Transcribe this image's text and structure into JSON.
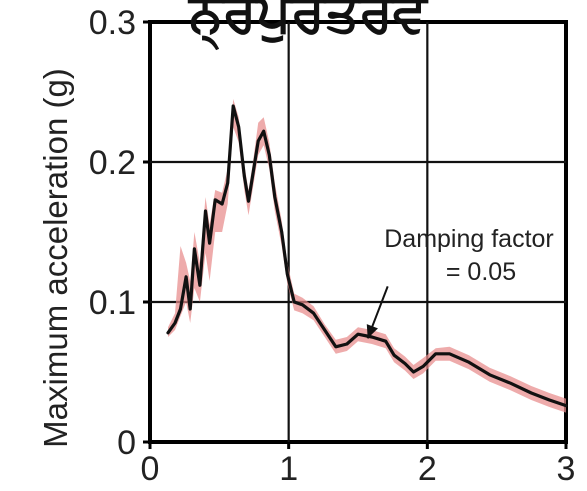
{
  "chart_data": {
    "type": "line",
    "title": "ਨ੍ਰਪੁਰਤਰਵ",
    "ylabel": "Maximum acceleration (g)",
    "xlabel": "",
    "xlim": [
      0,
      3
    ],
    "ylim": [
      0,
      0.3
    ],
    "x_ticks": [
      "0",
      "1",
      "2",
      "3"
    ],
    "y_ticks": [
      "0",
      "0.1",
      "0.2",
      "0.3"
    ],
    "grid": true,
    "annotation": {
      "line1": "Damping factor",
      "line2": "= 0.05",
      "point": [
        1.57,
        0.074
      ]
    },
    "series": [
      {
        "name": "",
        "color": "#111111",
        "values": [
          [
            0.13,
            0.078
          ],
          [
            0.18,
            0.085
          ],
          [
            0.22,
            0.095
          ],
          [
            0.26,
            0.118
          ],
          [
            0.29,
            0.095
          ],
          [
            0.32,
            0.138
          ],
          [
            0.36,
            0.112
          ],
          [
            0.4,
            0.165
          ],
          [
            0.43,
            0.142
          ],
          [
            0.47,
            0.173
          ],
          [
            0.52,
            0.17
          ],
          [
            0.56,
            0.185
          ],
          [
            0.6,
            0.24
          ],
          [
            0.64,
            0.225
          ],
          [
            0.68,
            0.19
          ],
          [
            0.71,
            0.172
          ],
          [
            0.74,
            0.19
          ],
          [
            0.78,
            0.215
          ],
          [
            0.82,
            0.222
          ],
          [
            0.86,
            0.205
          ],
          [
            0.9,
            0.175
          ],
          [
            0.95,
            0.15
          ],
          [
            0.99,
            0.12
          ],
          [
            1.04,
            0.1
          ],
          [
            1.1,
            0.098
          ],
          [
            1.18,
            0.092
          ],
          [
            1.26,
            0.08
          ],
          [
            1.34,
            0.068
          ],
          [
            1.42,
            0.07
          ],
          [
            1.5,
            0.077
          ],
          [
            1.6,
            0.075
          ],
          [
            1.7,
            0.072
          ],
          [
            1.76,
            0.062
          ],
          [
            1.84,
            0.056
          ],
          [
            1.9,
            0.05
          ],
          [
            1.97,
            0.054
          ],
          [
            2.06,
            0.063
          ],
          [
            2.16,
            0.063
          ],
          [
            2.3,
            0.057
          ],
          [
            2.45,
            0.048
          ],
          [
            2.6,
            0.042
          ],
          [
            2.75,
            0.035
          ],
          [
            2.88,
            0.03
          ],
          [
            3.0,
            0.026
          ]
        ]
      }
    ],
    "band": {
      "name": "",
      "color": "#e88a8a",
      "upper": [
        [
          0.13,
          0.082
        ],
        [
          0.18,
          0.092
        ],
        [
          0.22,
          0.14
        ],
        [
          0.26,
          0.128
        ],
        [
          0.29,
          0.115
        ],
        [
          0.32,
          0.15
        ],
        [
          0.36,
          0.128
        ],
        [
          0.4,
          0.175
        ],
        [
          0.43,
          0.155
        ],
        [
          0.47,
          0.18
        ],
        [
          0.52,
          0.178
        ],
        [
          0.56,
          0.195
        ],
        [
          0.6,
          0.245
        ],
        [
          0.64,
          0.232
        ],
        [
          0.68,
          0.198
        ],
        [
          0.71,
          0.18
        ],
        [
          0.74,
          0.198
        ],
        [
          0.78,
          0.228
        ],
        [
          0.82,
          0.232
        ],
        [
          0.86,
          0.214
        ],
        [
          0.9,
          0.185
        ],
        [
          0.95,
          0.158
        ],
        [
          0.99,
          0.128
        ],
        [
          1.04,
          0.106
        ],
        [
          1.1,
          0.103
        ],
        [
          1.18,
          0.097
        ],
        [
          1.26,
          0.084
        ],
        [
          1.34,
          0.073
        ],
        [
          1.42,
          0.075
        ],
        [
          1.5,
          0.082
        ],
        [
          1.6,
          0.08
        ],
        [
          1.7,
          0.077
        ],
        [
          1.76,
          0.067
        ],
        [
          1.84,
          0.061
        ],
        [
          1.9,
          0.055
        ],
        [
          1.97,
          0.06
        ],
        [
          2.06,
          0.067
        ],
        [
          2.16,
          0.068
        ],
        [
          2.3,
          0.062
        ],
        [
          2.45,
          0.053
        ],
        [
          2.6,
          0.047
        ],
        [
          2.75,
          0.04
        ],
        [
          2.88,
          0.035
        ],
        [
          3.0,
          0.031
        ]
      ],
      "lower": [
        [
          0.13,
          0.075
        ],
        [
          0.18,
          0.08
        ],
        [
          0.22,
          0.09
        ],
        [
          0.26,
          0.1
        ],
        [
          0.29,
          0.085
        ],
        [
          0.32,
          0.11
        ],
        [
          0.36,
          0.1
        ],
        [
          0.4,
          0.135
        ],
        [
          0.43,
          0.115
        ],
        [
          0.47,
          0.15
        ],
        [
          0.52,
          0.15
        ],
        [
          0.56,
          0.17
        ],
        [
          0.6,
          0.225
        ],
        [
          0.64,
          0.214
        ],
        [
          0.68,
          0.18
        ],
        [
          0.71,
          0.162
        ],
        [
          0.74,
          0.18
        ],
        [
          0.78,
          0.205
        ],
        [
          0.82,
          0.212
        ],
        [
          0.86,
          0.195
        ],
        [
          0.9,
          0.165
        ],
        [
          0.95,
          0.14
        ],
        [
          0.99,
          0.113
        ],
        [
          1.04,
          0.094
        ],
        [
          1.1,
          0.092
        ],
        [
          1.18,
          0.087
        ],
        [
          1.26,
          0.075
        ],
        [
          1.34,
          0.063
        ],
        [
          1.42,
          0.065
        ],
        [
          1.5,
          0.072
        ],
        [
          1.6,
          0.07
        ],
        [
          1.7,
          0.067
        ],
        [
          1.76,
          0.057
        ],
        [
          1.84,
          0.051
        ],
        [
          1.9,
          0.045
        ],
        [
          1.97,
          0.049
        ],
        [
          2.06,
          0.058
        ],
        [
          2.16,
          0.058
        ],
        [
          2.3,
          0.052
        ],
        [
          2.45,
          0.043
        ],
        [
          2.6,
          0.037
        ],
        [
          2.75,
          0.03
        ],
        [
          2.88,
          0.025
        ],
        [
          3.0,
          0.021
        ]
      ]
    }
  }
}
